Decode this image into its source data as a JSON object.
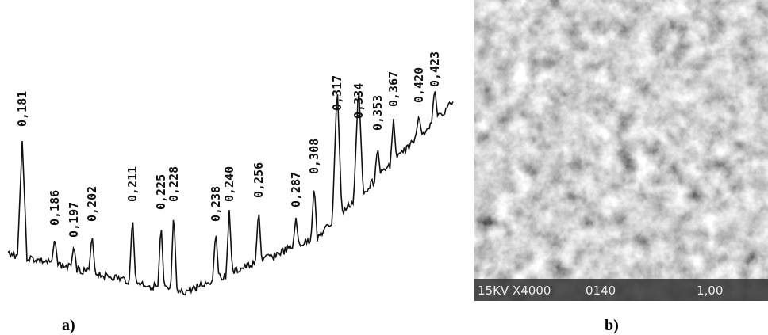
{
  "spectrum": {
    "peaks": [
      "0,181",
      "0,186",
      "0,197",
      "0,202",
      "0,211",
      "0,225",
      "0,228",
      "0,238",
      "0,240",
      "0,256",
      "0,287",
      "0,308",
      "0,317",
      "0,334",
      "0,353",
      "0,367",
      "0,420",
      "0,423"
    ],
    "caption": "a)"
  },
  "micrograph": {
    "info": [
      "15KV X4000",
      "0140",
      "1,00"
    ],
    "caption": "b)"
  }
}
